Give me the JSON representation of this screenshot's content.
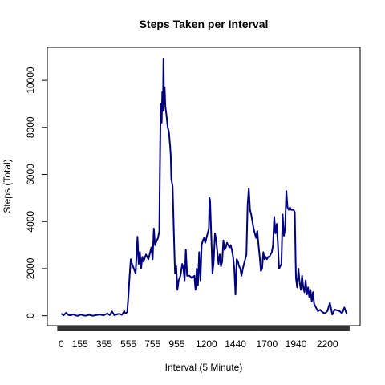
{
  "chart_data": {
    "type": "line",
    "title": "Steps Taken per Interval",
    "xlabel": "Interval (5 Minute)",
    "ylabel": "Steps (Total)",
    "xlim": [
      -115,
      2470
    ],
    "ylim": [
      -420,
      11400
    ],
    "y_ticks": [
      0,
      2000,
      4000,
      6000,
      8000,
      10000
    ],
    "x_tick_labels": [
      {
        "label": "0",
        "pos": 0
      },
      {
        "label": "155",
        "pos": 155
      },
      {
        "label": "355",
        "pos": 355
      },
      {
        "label": "555",
        "pos": 555
      },
      {
        "label": "755",
        "pos": 755
      },
      {
        "label": "955",
        "pos": 955
      },
      {
        "label": "1200",
        "pos": 1200
      },
      {
        "label": "1440",
        "pos": 1440
      },
      {
        "label": "1700",
        "pos": 1700
      },
      {
        "label": "1940",
        "pos": 1940
      },
      {
        "label": "2200",
        "pos": 2200
      }
    ],
    "color": "#00007f",
    "series": [
      {
        "name": "Steps",
        "x": [
          0,
          20,
          40,
          60,
          80,
          100,
          120,
          140,
          160,
          180,
          200,
          230,
          260,
          290,
          320,
          350,
          380,
          400,
          420,
          440,
          460,
          480,
          500,
          510,
          520,
          530,
          545,
          555,
          565,
          575,
          585,
          600,
          615,
          630,
          640,
          650,
          660,
          670,
          680,
          700,
          720,
          735,
          745,
          755,
          765,
          775,
          790,
          800,
          810,
          815,
          820,
          825,
          830,
          835,
          840,
          845,
          850,
          855,
          860,
          870,
          880,
          890,
          900,
          905,
          910,
          920,
          930,
          940,
          950,
          960,
          970,
          985,
          1000,
          1010,
          1020,
          1030,
          1040,
          1050,
          1060,
          1080,
          1100,
          1110,
          1120,
          1130,
          1140,
          1150,
          1160,
          1170,
          1180,
          1190,
          1200,
          1210,
          1220,
          1225,
          1230,
          1240,
          1250,
          1260,
          1270,
          1280,
          1290,
          1300,
          1310,
          1320,
          1330,
          1340,
          1350,
          1360,
          1370,
          1380,
          1390,
          1400,
          1410,
          1420,
          1430,
          1440,
          1450,
          1460,
          1470,
          1480,
          1490,
          1500,
          1510,
          1520,
          1530,
          1540,
          1550,
          1560,
          1570,
          1580,
          1590,
          1600,
          1610,
          1620,
          1630,
          1640,
          1650,
          1660,
          1670,
          1680,
          1690,
          1700,
          1710,
          1720,
          1730,
          1740,
          1750,
          1760,
          1770,
          1780,
          1790,
          1800,
          1810,
          1820,
          1830,
          1840,
          1850,
          1860,
          1870,
          1880,
          1890,
          1900,
          1910,
          1920,
          1930,
          1940,
          1950,
          1960,
          1970,
          1980,
          1990,
          2000,
          2010,
          2020,
          2030,
          2040,
          2050,
          2060,
          2070,
          2080,
          2090,
          2100,
          2120,
          2140,
          2160,
          2180,
          2200,
          2220,
          2240,
          2260,
          2280,
          2300,
          2320,
          2340,
          2360
        ],
        "y": [
          91,
          18,
          130,
          30,
          20,
          60,
          10,
          0,
          50,
          20,
          0,
          40,
          0,
          30,
          50,
          20,
          100,
          30,
          180,
          20,
          60,
          80,
          40,
          100,
          200,
          100,
          150,
          850,
          1700,
          2400,
          2200,
          2000,
          1800,
          3350,
          2200,
          2700,
          2000,
          2500,
          2300,
          2600,
          2400,
          2700,
          2900,
          2400,
          3700,
          3000,
          3200,
          3300,
          3600,
          6000,
          8400,
          9000,
          8200,
          9500,
          8700,
          10927,
          9000,
          9700,
          8900,
          8500,
          8000,
          7800,
          7200,
          6800,
          5800,
          5500,
          3600,
          1800,
          2100,
          1100,
          1500,
          1700,
          2200,
          2000,
          1500,
          2800,
          1700,
          1700,
          1700,
          1600,
          1700,
          1100,
          2000,
          1300,
          2700,
          1500,
          3000,
          3200,
          3300,
          3100,
          3300,
          3500,
          3700,
          5000,
          4900,
          3400,
          1800,
          2300,
          3500,
          3200,
          2700,
          2200,
          2600,
          2100,
          2300,
          3200,
          2800,
          2900,
          3100,
          3000,
          2900,
          3000,
          2800,
          2500,
          2000,
          900,
          2400,
          2300,
          2100,
          2000,
          1700,
          2000,
          2200,
          2400,
          2600,
          4700,
          5400,
          4500,
          4300,
          4000,
          3700,
          3500,
          3300,
          3600,
          3000,
          2500,
          1900,
          2000,
          2700,
          2400,
          2500,
          2400,
          2500,
          2500,
          2600,
          2700,
          3000,
          4200,
          3500,
          3900,
          3100,
          2000,
          2100,
          2200,
          4300,
          3400,
          3700,
          5300,
          4600,
          4500,
          4600,
          4500,
          4500,
          4500,
          4400,
          1600,
          1200,
          2000,
          1400,
          1100,
          1700,
          1200,
          1000,
          1500,
          900,
          1200,
          800,
          1100,
          600,
          1000,
          500,
          400,
          200,
          250,
          150,
          100,
          200,
          550,
          50,
          260,
          230,
          200,
          100,
          350,
          60
        ]
      }
    ]
  }
}
